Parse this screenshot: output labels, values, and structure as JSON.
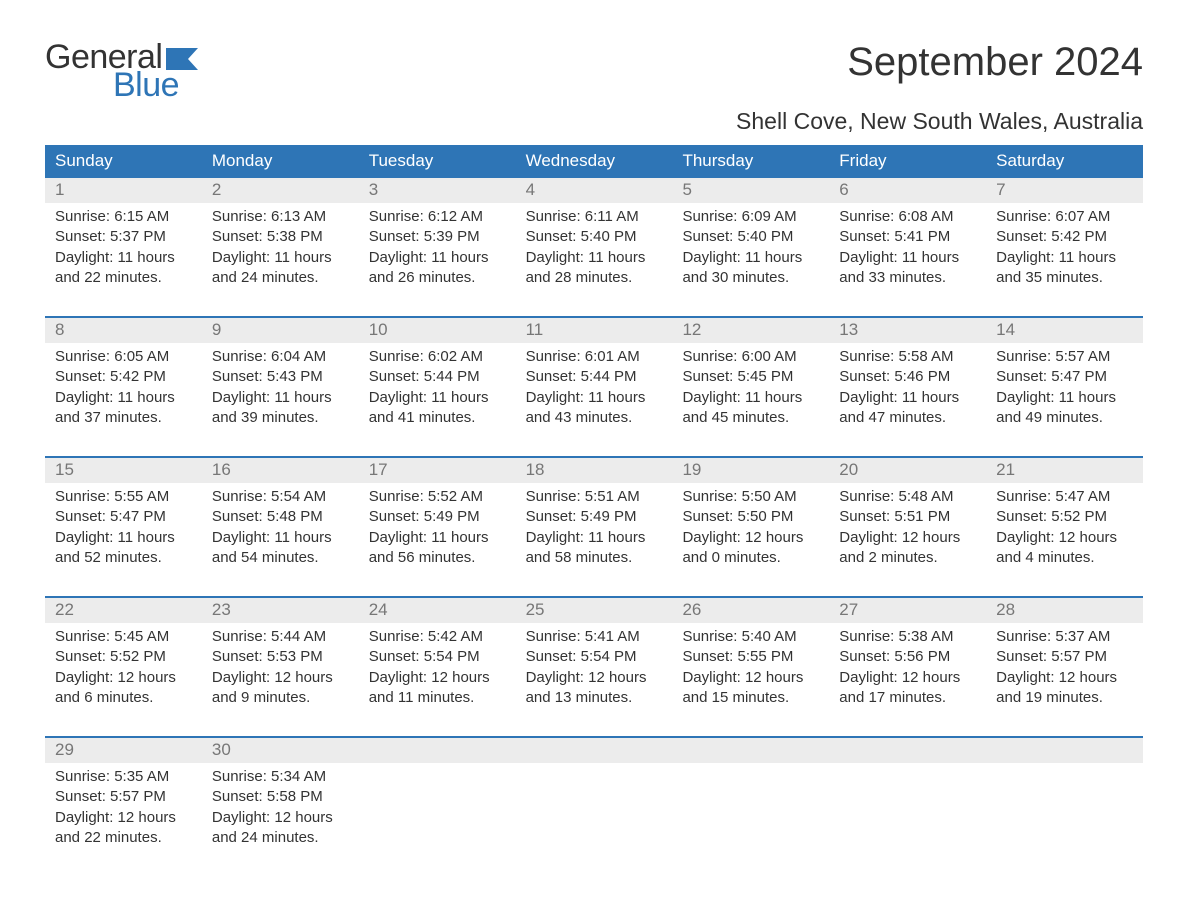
{
  "logo": {
    "text_general": "General",
    "text_blue": "Blue",
    "flag_color": "#2e75b6"
  },
  "title": "September 2024",
  "subtitle": "Shell Cove, New South Wales, Australia",
  "colors": {
    "header_bg": "#2e75b6",
    "header_text": "#ffffff",
    "daynum_bg": "#ececec",
    "daynum_text": "#777777",
    "body_text": "#333333",
    "week_border": "#2e75b6",
    "page_bg": "#ffffff"
  },
  "typography": {
    "title_fontsize": 40,
    "subtitle_fontsize": 23,
    "dayheader_fontsize": 17,
    "daynum_fontsize": 17,
    "daytext_fontsize": 15,
    "logo_fontsize": 34
  },
  "day_headers": [
    "Sunday",
    "Monday",
    "Tuesday",
    "Wednesday",
    "Thursday",
    "Friday",
    "Saturday"
  ],
  "weeks": [
    [
      {
        "num": "1",
        "sunrise": "6:15 AM",
        "sunset": "5:37 PM",
        "daylight": "11 hours and 22 minutes."
      },
      {
        "num": "2",
        "sunrise": "6:13 AM",
        "sunset": "5:38 PM",
        "daylight": "11 hours and 24 minutes."
      },
      {
        "num": "3",
        "sunrise": "6:12 AM",
        "sunset": "5:39 PM",
        "daylight": "11 hours and 26 minutes."
      },
      {
        "num": "4",
        "sunrise": "6:11 AM",
        "sunset": "5:40 PM",
        "daylight": "11 hours and 28 minutes."
      },
      {
        "num": "5",
        "sunrise": "6:09 AM",
        "sunset": "5:40 PM",
        "daylight": "11 hours and 30 minutes."
      },
      {
        "num": "6",
        "sunrise": "6:08 AM",
        "sunset": "5:41 PM",
        "daylight": "11 hours and 33 minutes."
      },
      {
        "num": "7",
        "sunrise": "6:07 AM",
        "sunset": "5:42 PM",
        "daylight": "11 hours and 35 minutes."
      }
    ],
    [
      {
        "num": "8",
        "sunrise": "6:05 AM",
        "sunset": "5:42 PM",
        "daylight": "11 hours and 37 minutes."
      },
      {
        "num": "9",
        "sunrise": "6:04 AM",
        "sunset": "5:43 PM",
        "daylight": "11 hours and 39 minutes."
      },
      {
        "num": "10",
        "sunrise": "6:02 AM",
        "sunset": "5:44 PM",
        "daylight": "11 hours and 41 minutes."
      },
      {
        "num": "11",
        "sunrise": "6:01 AM",
        "sunset": "5:44 PM",
        "daylight": "11 hours and 43 minutes."
      },
      {
        "num": "12",
        "sunrise": "6:00 AM",
        "sunset": "5:45 PM",
        "daylight": "11 hours and 45 minutes."
      },
      {
        "num": "13",
        "sunrise": "5:58 AM",
        "sunset": "5:46 PM",
        "daylight": "11 hours and 47 minutes."
      },
      {
        "num": "14",
        "sunrise": "5:57 AM",
        "sunset": "5:47 PM",
        "daylight": "11 hours and 49 minutes."
      }
    ],
    [
      {
        "num": "15",
        "sunrise": "5:55 AM",
        "sunset": "5:47 PM",
        "daylight": "11 hours and 52 minutes."
      },
      {
        "num": "16",
        "sunrise": "5:54 AM",
        "sunset": "5:48 PM",
        "daylight": "11 hours and 54 minutes."
      },
      {
        "num": "17",
        "sunrise": "5:52 AM",
        "sunset": "5:49 PM",
        "daylight": "11 hours and 56 minutes."
      },
      {
        "num": "18",
        "sunrise": "5:51 AM",
        "sunset": "5:49 PM",
        "daylight": "11 hours and 58 minutes."
      },
      {
        "num": "19",
        "sunrise": "5:50 AM",
        "sunset": "5:50 PM",
        "daylight": "12 hours and 0 minutes."
      },
      {
        "num": "20",
        "sunrise": "5:48 AM",
        "sunset": "5:51 PM",
        "daylight": "12 hours and 2 minutes."
      },
      {
        "num": "21",
        "sunrise": "5:47 AM",
        "sunset": "5:52 PM",
        "daylight": "12 hours and 4 minutes."
      }
    ],
    [
      {
        "num": "22",
        "sunrise": "5:45 AM",
        "sunset": "5:52 PM",
        "daylight": "12 hours and 6 minutes."
      },
      {
        "num": "23",
        "sunrise": "5:44 AM",
        "sunset": "5:53 PM",
        "daylight": "12 hours and 9 minutes."
      },
      {
        "num": "24",
        "sunrise": "5:42 AM",
        "sunset": "5:54 PM",
        "daylight": "12 hours and 11 minutes."
      },
      {
        "num": "25",
        "sunrise": "5:41 AM",
        "sunset": "5:54 PM",
        "daylight": "12 hours and 13 minutes."
      },
      {
        "num": "26",
        "sunrise": "5:40 AM",
        "sunset": "5:55 PM",
        "daylight": "12 hours and 15 minutes."
      },
      {
        "num": "27",
        "sunrise": "5:38 AM",
        "sunset": "5:56 PM",
        "daylight": "12 hours and 17 minutes."
      },
      {
        "num": "28",
        "sunrise": "5:37 AM",
        "sunset": "5:57 PM",
        "daylight": "12 hours and 19 minutes."
      }
    ],
    [
      {
        "num": "29",
        "sunrise": "5:35 AM",
        "sunset": "5:57 PM",
        "daylight": "12 hours and 22 minutes."
      },
      {
        "num": "30",
        "sunrise": "5:34 AM",
        "sunset": "5:58 PM",
        "daylight": "12 hours and 24 minutes."
      },
      {
        "num": "",
        "sunrise": "",
        "sunset": "",
        "daylight": ""
      },
      {
        "num": "",
        "sunrise": "",
        "sunset": "",
        "daylight": ""
      },
      {
        "num": "",
        "sunrise": "",
        "sunset": "",
        "daylight": ""
      },
      {
        "num": "",
        "sunrise": "",
        "sunset": "",
        "daylight": ""
      },
      {
        "num": "",
        "sunrise": "",
        "sunset": "",
        "daylight": ""
      }
    ]
  ]
}
